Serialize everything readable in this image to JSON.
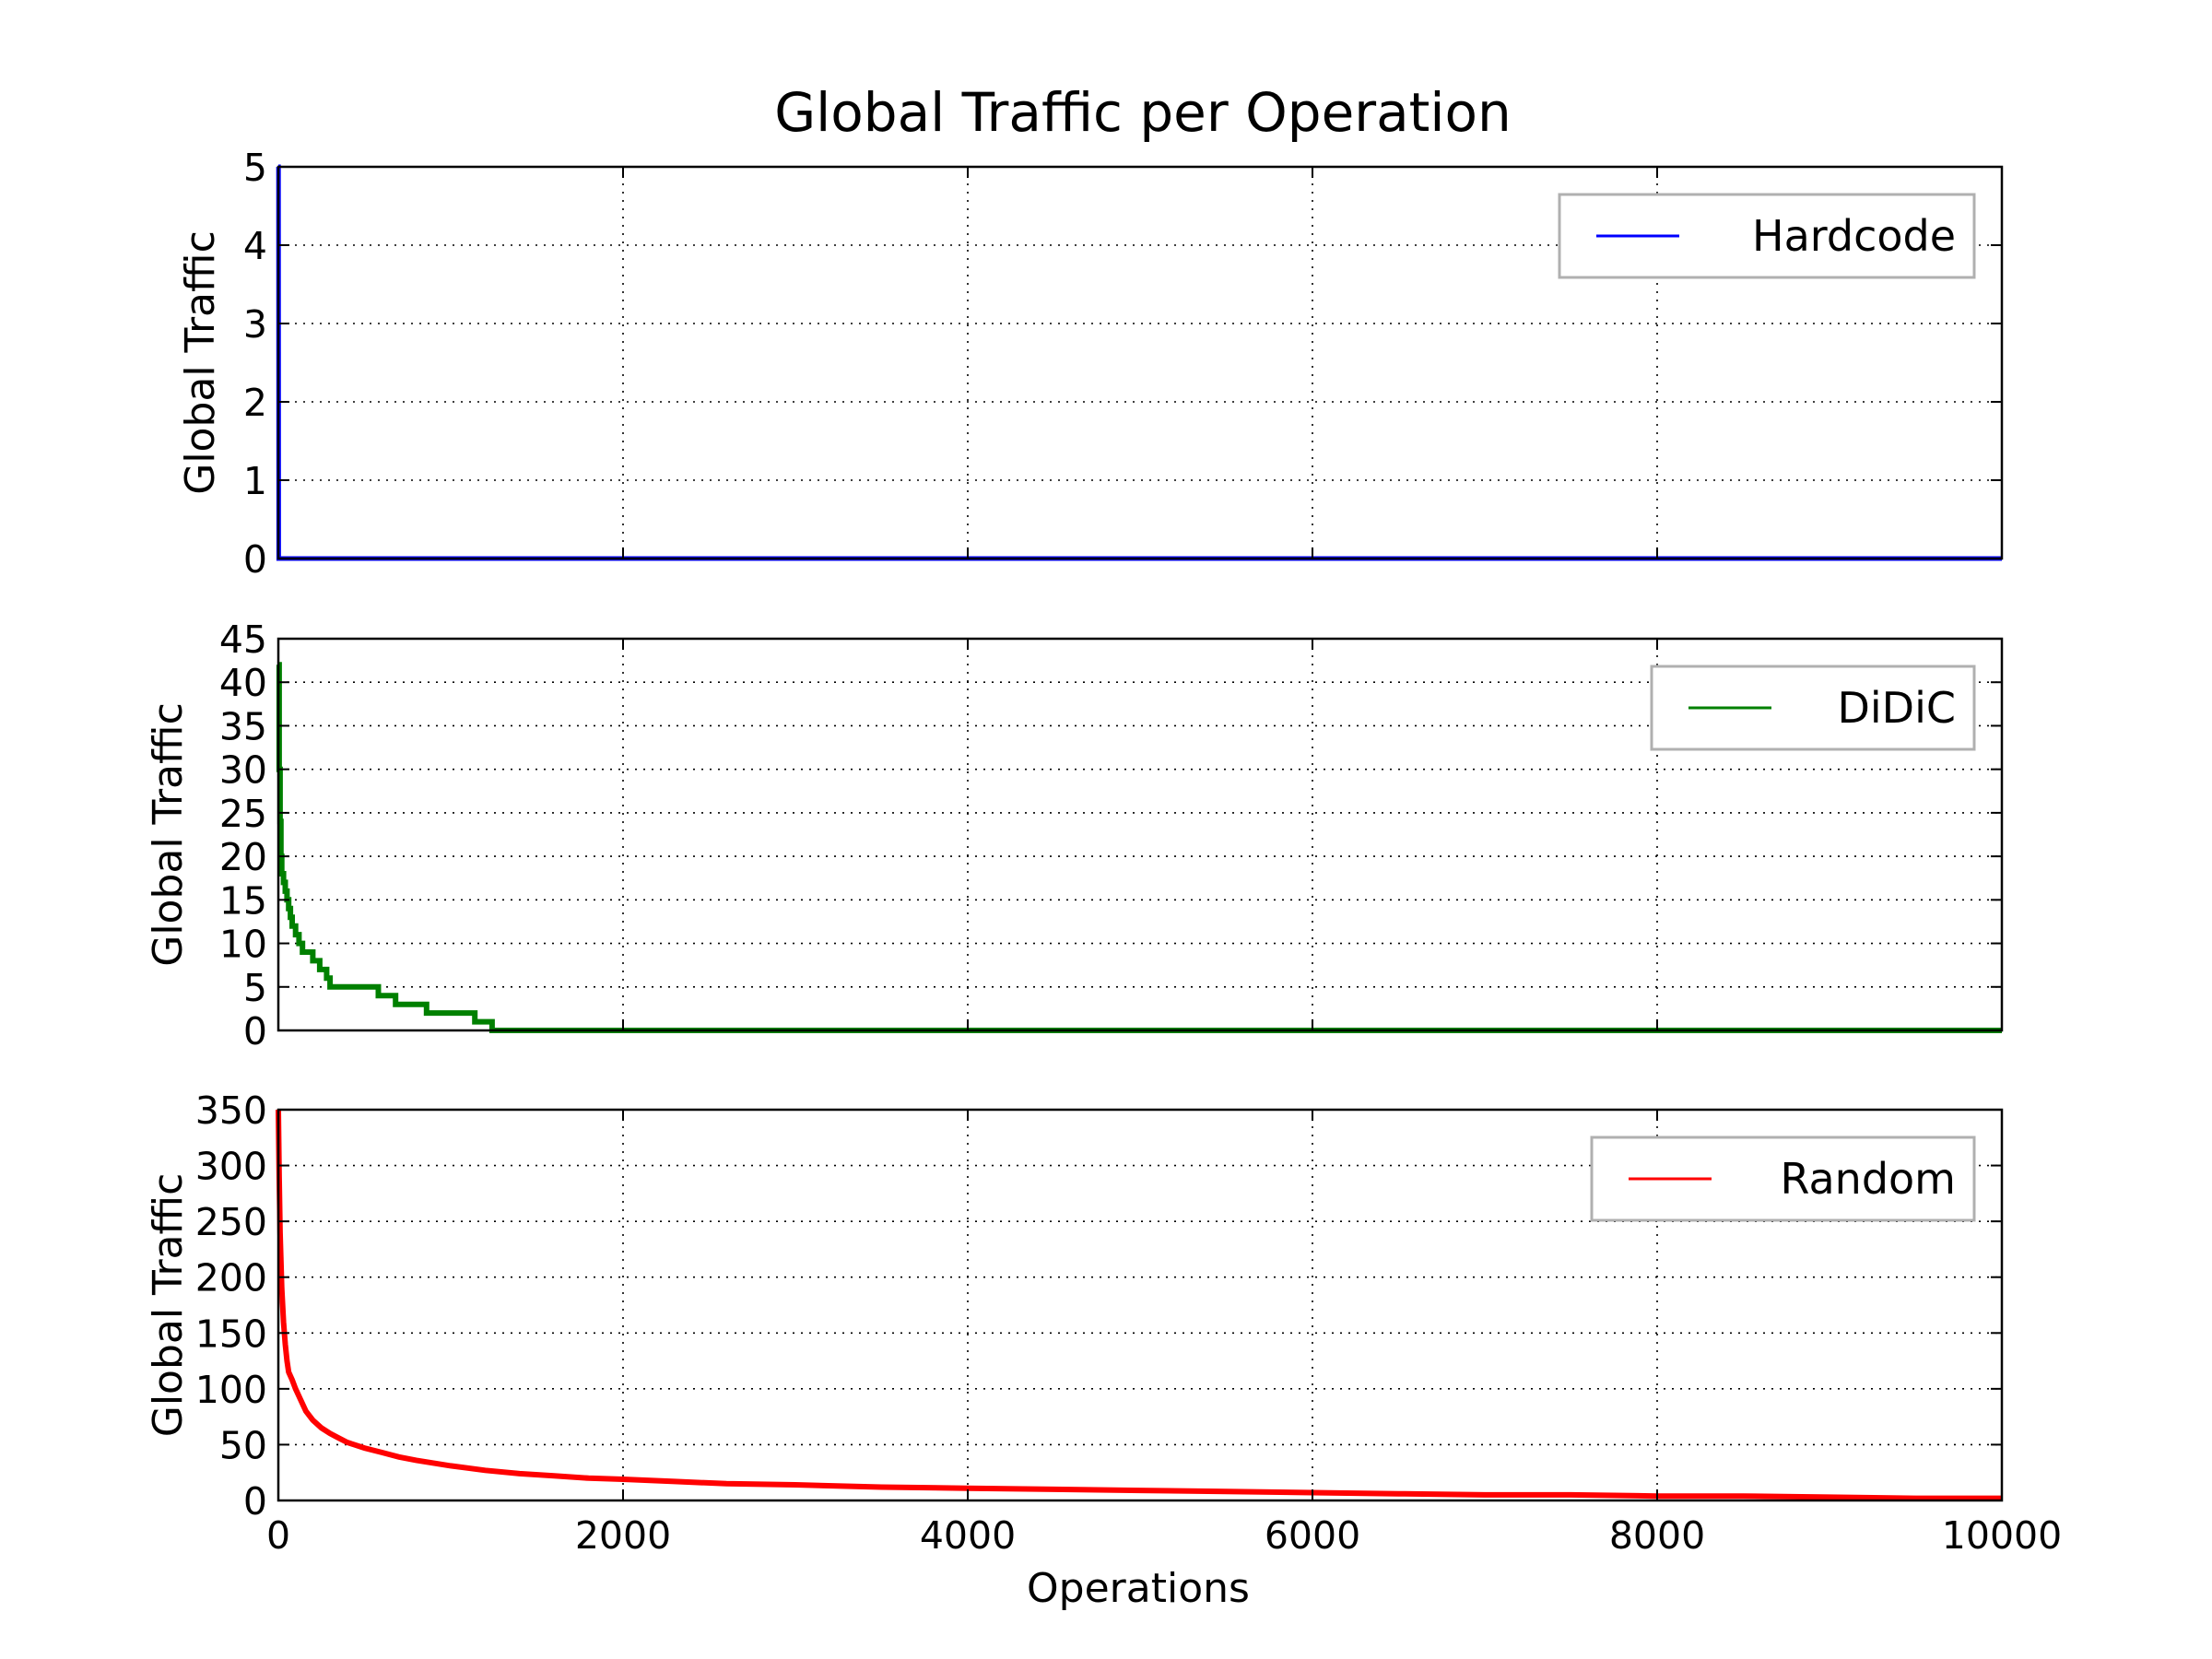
{
  "title": "Global Traffic per Operation",
  "xlabel": "Operations",
  "chart_data": [
    {
      "type": "line",
      "title": "",
      "xlabel": "Operations",
      "ylabel": "Global Traffic",
      "xlim": [
        0,
        10000
      ],
      "ylim": [
        0,
        5
      ],
      "x_ticks": [
        "0",
        "2000",
        "4000",
        "6000",
        "8000",
        "10000"
      ],
      "y_ticks": [
        "0",
        "1",
        "2",
        "3",
        "4",
        "5"
      ],
      "grid": true,
      "legend_position": "top-right",
      "step": false,
      "series": [
        {
          "name": "Hardcode",
          "color": "#0000ff",
          "x": [
            0,
            1,
            2,
            10000
          ],
          "y": [
            5,
            5,
            0,
            0
          ]
        }
      ]
    },
    {
      "type": "line",
      "title": "",
      "xlabel": "Operations",
      "ylabel": "Global Traffic",
      "xlim": [
        0,
        10000
      ],
      "ylim": [
        0,
        45
      ],
      "x_ticks": [
        "0",
        "2000",
        "4000",
        "6000",
        "8000",
        "10000"
      ],
      "y_ticks": [
        "0",
        "5",
        "10",
        "15",
        "20",
        "25",
        "30",
        "35",
        "40",
        "45"
      ],
      "grid": true,
      "legend_position": "top-right",
      "step": true,
      "series": [
        {
          "name": "DiDiC",
          "color": "#008000",
          "x": [
            0,
            5,
            10,
            15,
            20,
            30,
            40,
            50,
            60,
            70,
            80,
            100,
            120,
            140,
            160,
            200,
            240,
            280,
            300,
            340,
            580,
            680,
            860,
            1140,
            1240,
            1260,
            10000
          ],
          "y": [
            42,
            30,
            24,
            20,
            18,
            17,
            16,
            15,
            14,
            13,
            12,
            11,
            10,
            9,
            9,
            8,
            7,
            6,
            5,
            5,
            4,
            3,
            2,
            1,
            0,
            0,
            0
          ]
        }
      ]
    },
    {
      "type": "line",
      "title": "",
      "xlabel": "Operations",
      "ylabel": "Global Traffic",
      "xlim": [
        0,
        10000
      ],
      "ylim": [
        0,
        350
      ],
      "x_ticks": [
        "0",
        "2000",
        "4000",
        "6000",
        "8000",
        "10000"
      ],
      "y_ticks": [
        "0",
        "50",
        "100",
        "150",
        "200",
        "250",
        "300",
        "350"
      ],
      "grid": true,
      "legend_position": "top-right",
      "step": false,
      "series": [
        {
          "name": "Random",
          "color": "#ff0000",
          "x": [
            0,
            5,
            10,
            20,
            30,
            40,
            50,
            60,
            80,
            100,
            130,
            160,
            200,
            250,
            300,
            350,
            400,
            500,
            600,
            700,
            800,
            1000,
            1200,
            1400,
            1600,
            1800,
            2000,
            2300,
            2600,
            3000,
            3500,
            4000,
            4500,
            5000,
            5500,
            6000,
            6500,
            7000,
            7500,
            8000,
            8500,
            9000,
            9500,
            10000
          ],
          "y": [
            350,
            290,
            240,
            190,
            160,
            140,
            125,
            115,
            108,
            100,
            90,
            80,
            72,
            65,
            60,
            56,
            52,
            47,
            43,
            39,
            36,
            31,
            27,
            24,
            22,
            20,
            19,
            17,
            15,
            14,
            12,
            11,
            10,
            9,
            8,
            7,
            6,
            5,
            5,
            4,
            4,
            3,
            2,
            2
          ]
        }
      ]
    }
  ]
}
